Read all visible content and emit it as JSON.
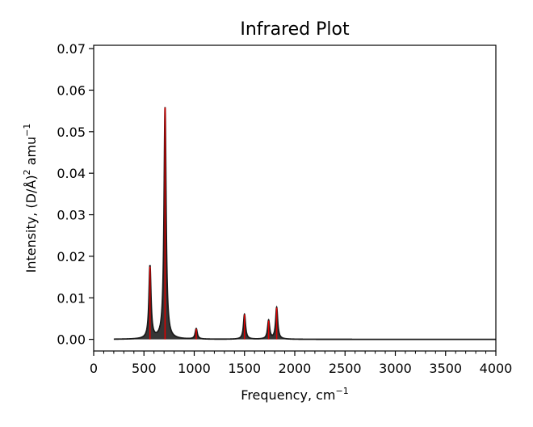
{
  "chart_data": {
    "type": "line",
    "title": "Infrared Plot",
    "xlabel": "Frequency, cm",
    "xlabel_sup": "−1",
    "ylabel": "Intensity, (D/Å)",
    "ylabel_sup1": "2",
    "ylabel_mid": " amu",
    "ylabel_sup2": "−1",
    "xlim": [
      0,
      4000
    ],
    "ylim": [
      -0.0028,
      0.0708
    ],
    "x_ticks": [
      0,
      500,
      1000,
      1500,
      2000,
      2500,
      3000,
      3500,
      4000
    ],
    "x_tick_labels": [
      "0",
      "500",
      "1000",
      "1500",
      "2000",
      "2500",
      "3000",
      "3500",
      "4000"
    ],
    "x_minor_step": 100,
    "y_ticks": [
      0.0,
      0.01,
      0.02,
      0.03,
      0.04,
      0.05,
      0.06,
      0.07
    ],
    "y_tick_labels": [
      "0.00",
      "0.01",
      "0.02",
      "0.03",
      "0.04",
      "0.05",
      "0.06",
      "0.07"
    ],
    "spectrum_range": [
      200,
      4000
    ],
    "peak_half_width": 12,
    "peaks": [
      {
        "x": 560,
        "y": 0.0175
      },
      {
        "x": 710,
        "y": 0.0558
      },
      {
        "x": 1020,
        "y": 0.0025
      },
      {
        "x": 1500,
        "y": 0.006
      },
      {
        "x": 1740,
        "y": 0.0045
      },
      {
        "x": 1820,
        "y": 0.0076
      }
    ],
    "grid": false,
    "colors": {
      "fill": "#2b2b2b",
      "stick": "#dd0000",
      "axes": "#000000"
    }
  }
}
